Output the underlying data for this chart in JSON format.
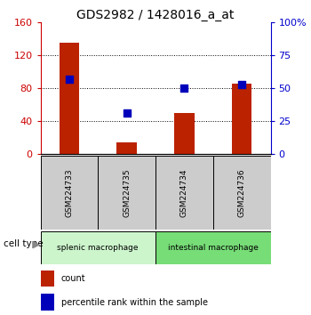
{
  "title": "GDS2982 / 1428016_a_at",
  "samples": [
    "GSM224733",
    "GSM224735",
    "GSM224734",
    "GSM224736"
  ],
  "counts": [
    135,
    15,
    50,
    85
  ],
  "percentiles": [
    57,
    31,
    50,
    53
  ],
  "bar_color": "#bb2200",
  "dot_color": "#0000bb",
  "ylim_left": [
    0,
    160
  ],
  "ylim_right": [
    0,
    100
  ],
  "yticks_left": [
    0,
    40,
    80,
    120,
    160
  ],
  "yticks_right": [
    0,
    25,
    50,
    75,
    100
  ],
  "yticklabels_left": [
    "0",
    "40",
    "80",
    "120",
    "160"
  ],
  "yticklabels_right": [
    "0",
    "25",
    "50",
    "75",
    "100%"
  ],
  "left_axis_color": "#cc0000",
  "right_axis_color": "#0000cc",
  "grid_lines": [
    40,
    80,
    120
  ],
  "sample_box_color": "#cccccc",
  "group1_color": "#ccf5cc",
  "group2_color": "#77dd77",
  "group1_label": "splenic macrophage",
  "group2_label": "intestinal macrophage",
  "legend_label1": "count",
  "legend_label2": "percentile rank within the sample"
}
